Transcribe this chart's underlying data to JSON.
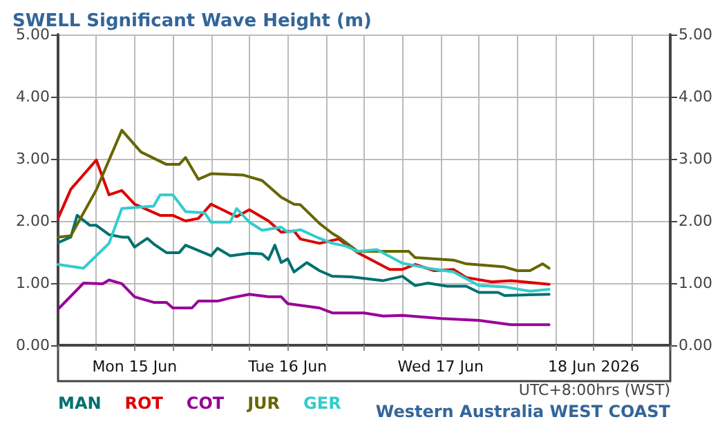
{
  "chart_data": {
    "type": "line",
    "title": "SWELL Significant Wave Height (m)",
    "annotations": [
      "UTC+8:00hrs (WST)",
      "Western Australia WEST COAST"
    ],
    "xlim": [
      "2026-06-15T00:00",
      "2026-06-19T00:00"
    ],
    "xticks": [
      {
        "value": "2026-06-15T00:00",
        "label": null
      },
      {
        "value": "2026-06-15T06:00",
        "label": null
      },
      {
        "value": "2026-06-15T12:00",
        "label": "Mon 15 Jun"
      },
      {
        "value": "2026-06-15T18:00",
        "label": null
      },
      {
        "value": "2026-06-16T00:00",
        "label": null
      },
      {
        "value": "2026-06-16T06:00",
        "label": null
      },
      {
        "value": "2026-06-16T12:00",
        "label": "Tue 16 Jun"
      },
      {
        "value": "2026-06-16T18:00",
        "label": null
      },
      {
        "value": "2026-06-17T00:00",
        "label": null
      },
      {
        "value": "2026-06-17T06:00",
        "label": null
      },
      {
        "value": "2026-06-17T12:00",
        "label": "Wed 17 Jun"
      },
      {
        "value": "2026-06-17T18:00",
        "label": null
      },
      {
        "value": "2026-06-18T00:00",
        "label": null
      },
      {
        "value": "2026-06-18T06:00",
        "label": null
      },
      {
        "value": "2026-06-18T12:00",
        "label": "18 Jun 2026"
      },
      {
        "value": "2026-06-18T18:00",
        "label": null
      },
      {
        "value": "2026-06-19T00:00",
        "label": null
      }
    ],
    "ylim": [
      0,
      5
    ],
    "yticks": [
      {
        "value": 0,
        "label": "0.00"
      },
      {
        "value": 1,
        "label": "1.00"
      },
      {
        "value": 2,
        "label": "2.00"
      },
      {
        "value": 3,
        "label": "3.00"
      },
      {
        "value": 4,
        "label": "4.00"
      },
      {
        "value": 5,
        "label": "5.00"
      }
    ],
    "y2lim": [
      0,
      5
    ],
    "y2ticks": [
      {
        "value": 0,
        "label": "0.00"
      },
      {
        "value": 1,
        "label": "1.00"
      },
      {
        "value": 2,
        "label": "2.00"
      },
      {
        "value": 3,
        "label": "3.00"
      },
      {
        "value": 4,
        "label": "4.00"
      },
      {
        "value": 5,
        "label": "5.00"
      }
    ],
    "grid": true,
    "legend": "bottom left",
    "marker": "none",
    "line_style": "solid",
    "series": [
      {
        "name": "MAN",
        "color": "#007070",
        "x": [
          "2026-06-15T00:00",
          "2026-06-15T02:00",
          "2026-06-15T03:00",
          "2026-06-15T05:00",
          "2026-06-15T06:00",
          "2026-06-15T08:00",
          "2026-06-15T10:00",
          "2026-06-15T11:00",
          "2026-06-15T12:00",
          "2026-06-15T14:00",
          "2026-06-15T15:00",
          "2026-06-15T17:00",
          "2026-06-15T19:00",
          "2026-06-15T20:00",
          "2026-06-16T00:00",
          "2026-06-16T01:00",
          "2026-06-16T03:00",
          "2026-06-16T06:00",
          "2026-06-16T08:00",
          "2026-06-16T09:00",
          "2026-06-16T10:00",
          "2026-06-16T11:00",
          "2026-06-16T12:00",
          "2026-06-16T13:00",
          "2026-06-16T15:00",
          "2026-06-16T17:00",
          "2026-06-16T19:00",
          "2026-06-16T22:00",
          "2026-06-17T03:00",
          "2026-06-17T06:00",
          "2026-06-17T08:00",
          "2026-06-17T10:00",
          "2026-06-17T13:00",
          "2026-06-17T16:00",
          "2026-06-17T18:00",
          "2026-06-17T21:00",
          "2026-06-17T22:00",
          "2026-06-18T05:00"
        ],
        "values": [
          1.65,
          1.74,
          2.09,
          1.93,
          1.93,
          1.78,
          1.74,
          1.74,
          1.58,
          1.72,
          1.63,
          1.49,
          1.49,
          1.61,
          1.44,
          1.56,
          1.44,
          1.48,
          1.47,
          1.38,
          1.61,
          1.33,
          1.39,
          1.18,
          1.33,
          1.2,
          1.11,
          1.1,
          1.04,
          1.11,
          0.96,
          1.0,
          0.95,
          0.95,
          0.85,
          0.85,
          0.8,
          0.82
        ]
      },
      {
        "name": "ROT",
        "color": "#dd0000",
        "x": [
          "2026-06-15T00:00",
          "2026-06-15T02:00",
          "2026-06-15T06:00",
          "2026-06-15T08:00",
          "2026-06-15T10:00",
          "2026-06-15T12:00",
          "2026-06-15T16:00",
          "2026-06-15T18:00",
          "2026-06-15T20:00",
          "2026-06-15T22:00",
          "2026-06-16T00:00",
          "2026-06-16T04:00",
          "2026-06-16T06:00",
          "2026-06-16T09:00",
          "2026-06-16T11:00",
          "2026-06-16T13:00",
          "2026-06-16T14:00",
          "2026-06-16T17:00",
          "2026-06-16T20:00",
          "2026-06-16T23:00",
          "2026-06-17T04:00",
          "2026-06-17T06:00",
          "2026-06-17T08:00",
          "2026-06-17T11:00",
          "2026-06-17T14:00",
          "2026-06-17T16:00",
          "2026-06-17T20:00",
          "2026-06-17T23:00",
          "2026-06-18T03:00",
          "2026-06-18T05:00"
        ],
        "values": [
          2.04,
          2.51,
          2.98,
          2.42,
          2.49,
          2.27,
          2.09,
          2.09,
          2.0,
          2.04,
          2.27,
          2.07,
          2.18,
          2.0,
          1.82,
          1.84,
          1.71,
          1.64,
          1.71,
          1.49,
          1.22,
          1.22,
          1.3,
          1.2,
          1.22,
          1.09,
          1.02,
          1.04,
          1.0,
          0.98
        ]
      },
      {
        "name": "COT",
        "color": "#990099",
        "x": [
          "2026-06-15T00:00",
          "2026-06-15T04:00",
          "2026-06-15T07:00",
          "2026-06-15T08:00",
          "2026-06-15T10:00",
          "2026-06-15T12:00",
          "2026-06-15T15:00",
          "2026-06-15T17:00",
          "2026-06-15T18:00",
          "2026-06-15T21:00",
          "2026-06-15T22:00",
          "2026-06-16T01:00",
          "2026-06-16T03:00",
          "2026-06-16T06:00",
          "2026-06-16T09:00",
          "2026-06-16T11:00",
          "2026-06-16T12:00",
          "2026-06-16T17:00",
          "2026-06-16T19:00",
          "2026-06-17T00:00",
          "2026-06-17T03:00",
          "2026-06-17T06:00",
          "2026-06-17T12:00",
          "2026-06-17T18:00",
          "2026-06-17T23:00",
          "2026-06-18T05:00"
        ],
        "values": [
          0.58,
          1.0,
          0.99,
          1.05,
          0.99,
          0.78,
          0.69,
          0.69,
          0.6,
          0.6,
          0.71,
          0.71,
          0.76,
          0.82,
          0.78,
          0.78,
          0.67,
          0.6,
          0.52,
          0.52,
          0.47,
          0.48,
          0.43,
          0.4,
          0.33,
          0.33
        ]
      },
      {
        "name": "JUR",
        "color": "#666600",
        "x": [
          "2026-06-15T00:00",
          "2026-06-15T02:00",
          "2026-06-15T06:00",
          "2026-06-15T10:00",
          "2026-06-15T13:00",
          "2026-06-15T17:00",
          "2026-06-15T19:00",
          "2026-06-15T20:00",
          "2026-06-15T22:00",
          "2026-06-16T00:00",
          "2026-06-16T05:00",
          "2026-06-16T08:00",
          "2026-06-16T11:00",
          "2026-06-16T13:00",
          "2026-06-16T14:00",
          "2026-06-16T17:00",
          "2026-06-16T19:00",
          "2026-06-16T20:00",
          "2026-06-16T23:00",
          "2026-06-17T07:00",
          "2026-06-17T08:00",
          "2026-06-17T14:00",
          "2026-06-17T16:00",
          "2026-06-17T22:00",
          "2026-06-18T00:00",
          "2026-06-18T02:00",
          "2026-06-18T04:00",
          "2026-06-18T05:00"
        ],
        "values": [
          1.74,
          1.76,
          2.5,
          3.46,
          3.11,
          2.91,
          2.91,
          3.02,
          2.67,
          2.76,
          2.74,
          2.65,
          2.38,
          2.27,
          2.26,
          1.96,
          1.8,
          1.74,
          1.51,
          1.51,
          1.41,
          1.37,
          1.31,
          1.26,
          1.2,
          1.2,
          1.31,
          1.24
        ]
      },
      {
        "name": "GER",
        "color": "#33cccc",
        "x": [
          "2026-06-15T00:00",
          "2026-06-15T04:00",
          "2026-06-15T08:00",
          "2026-06-15T10:00",
          "2026-06-15T15:00",
          "2026-06-15T16:00",
          "2026-06-15T18:00",
          "2026-06-15T20:00",
          "2026-06-15T23:00",
          "2026-06-16T00:00",
          "2026-06-16T03:00",
          "2026-06-16T04:00",
          "2026-06-16T06:00",
          "2026-06-16T08:00",
          "2026-06-16T11:00",
          "2026-06-16T12:00",
          "2026-06-16T14:00",
          "2026-06-16T17:00",
          "2026-06-16T19:00",
          "2026-06-16T21:00",
          "2026-06-16T23:00",
          "2026-06-17T02:00",
          "2026-06-17T06:00",
          "2026-06-17T10:00",
          "2026-06-17T14:00",
          "2026-06-17T18:00",
          "2026-06-17T22:00",
          "2026-06-18T02:00",
          "2026-06-18T05:00"
        ],
        "values": [
          1.3,
          1.24,
          1.64,
          2.2,
          2.24,
          2.42,
          2.42,
          2.15,
          2.13,
          1.98,
          1.98,
          2.2,
          1.98,
          1.85,
          1.9,
          1.82,
          1.86,
          1.72,
          1.64,
          1.6,
          1.51,
          1.54,
          1.32,
          1.24,
          1.18,
          0.96,
          0.94,
          0.87,
          0.9
        ]
      }
    ]
  }
}
